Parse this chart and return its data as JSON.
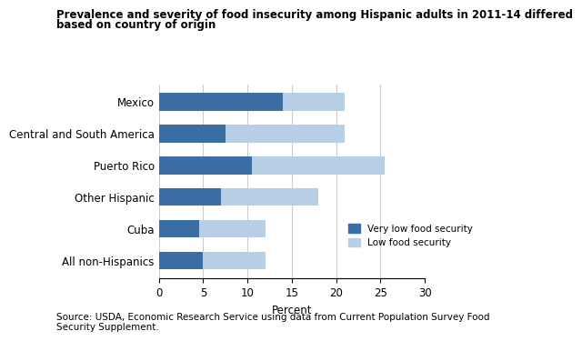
{
  "categories": [
    "All non-Hispanics",
    "Cuba",
    "Other Hispanic",
    "Puerto Rico",
    "Central and South America",
    "Mexico"
  ],
  "very_low": [
    5.0,
    4.5,
    7.0,
    10.5,
    7.5,
    14.0
  ],
  "low": [
    7.0,
    7.5,
    11.0,
    15.0,
    13.5,
    7.0
  ],
  "color_very_low": "#3a6ea5",
  "color_low": "#b8cfe8",
  "title_line1": "Prevalence and severity of food insecurity among Hispanic adults in 2011-14 differed",
  "title_line2": "based on country of origin",
  "xlabel": "Percent",
  "xlim": [
    0,
    30
  ],
  "xticks": [
    0,
    5,
    10,
    15,
    20,
    25,
    30
  ],
  "legend_very_low": "Very low food security",
  "legend_low": "Low food security",
  "source_text": "Source: USDA, Economic Research Service using data from Current Population Survey Food\nSecurity Supplement.",
  "bar_height": 0.55,
  "title_fontsize": 8.5,
  "axis_fontsize": 8.5,
  "source_fontsize": 7.5
}
